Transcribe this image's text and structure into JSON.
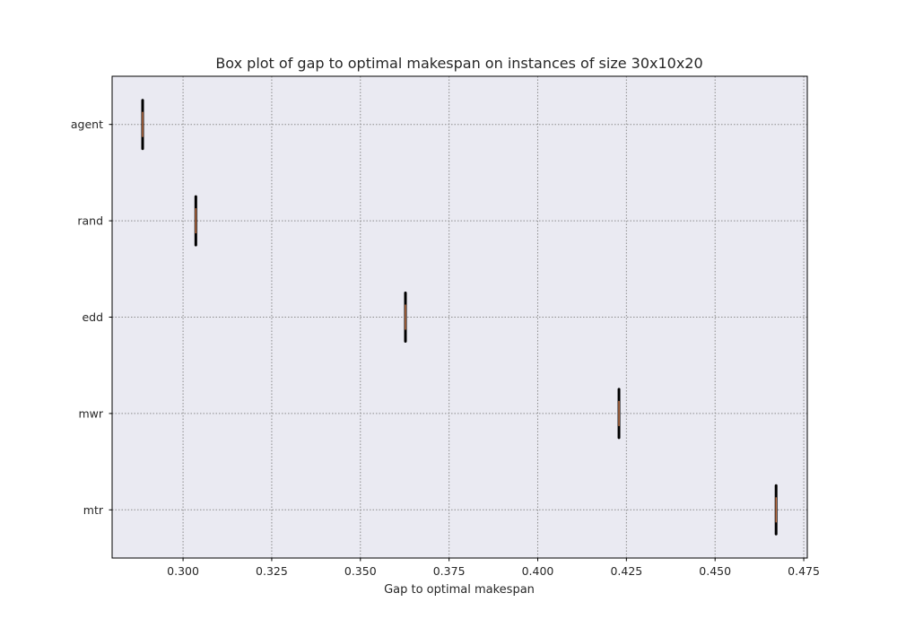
{
  "chart_data": {
    "type": "boxplot",
    "orientation": "horizontal",
    "title": "Box plot of gap to optimal makespan on instances of size 30x10x20",
    "xlabel": "Gap to optimal makespan",
    "ylabel": "",
    "xlim": [
      0.28,
      0.476
    ],
    "x_ticks": [
      0.3,
      0.325,
      0.35,
      0.375,
      0.4,
      0.425,
      0.45,
      0.475
    ],
    "x_tick_labels": [
      "0.300",
      "0.325",
      "0.350",
      "0.375",
      "0.400",
      "0.425",
      "0.450",
      "0.475"
    ],
    "categories": [
      "agent",
      "rand",
      "edd",
      "mwr",
      "mtr"
    ],
    "series": [
      {
        "values": [
          0.2886,
          0.3036,
          0.3627,
          0.4229,
          0.4672
        ]
      }
    ],
    "grid": true,
    "grid_style": "dotted",
    "legend": "none",
    "colors": {
      "plot_background": "#eaeaf2",
      "box": "#000000",
      "median": "#dd8452",
      "grid": "#8c8c8c",
      "spine": "#000000"
    }
  }
}
